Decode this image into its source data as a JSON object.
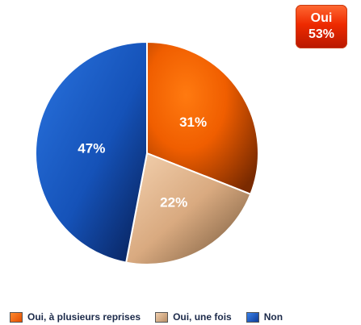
{
  "chart_data": {
    "type": "pie",
    "categories": [
      "Oui, à plusieurs reprises",
      "Oui, une fois",
      "Non"
    ],
    "values": [
      31,
      22,
      47
    ],
    "data_labels": [
      "31%",
      "22%",
      "47%"
    ],
    "colors": [
      "#ff6a00",
      "#e8b98c",
      "#1a5ec8"
    ],
    "legend_position": "bottom",
    "title": ""
  },
  "summary_badge": {
    "line1": "Oui",
    "line2": "53%",
    "color": "#e83300"
  },
  "legend": {
    "items": [
      {
        "label": "Oui, à plusieurs reprises",
        "color": "#ff6a00"
      },
      {
        "label": "Oui, une fois",
        "color": "#e8b98c"
      },
      {
        "label": "Non",
        "color": "#1a5ec8"
      }
    ]
  }
}
